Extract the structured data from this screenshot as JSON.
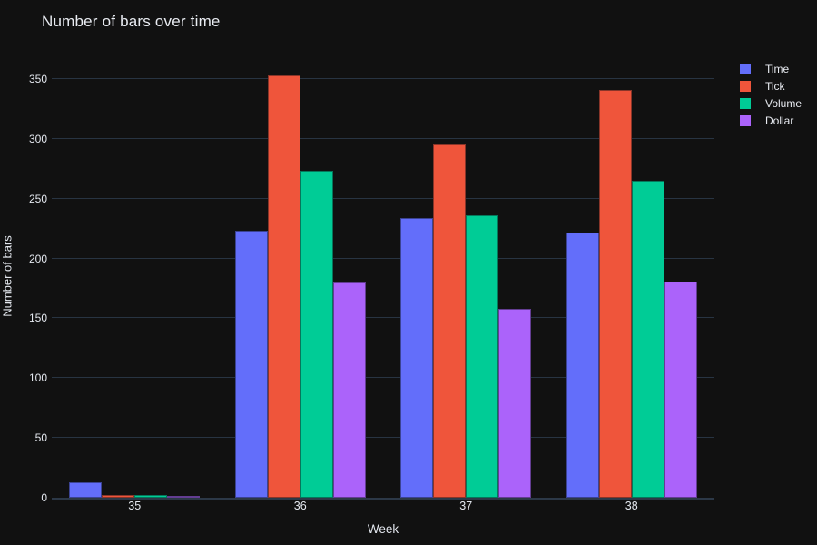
{
  "colors": {
    "background": "#111111",
    "grid": "#283442",
    "zero_line": "#2c3847",
    "text": "#e9ecf2"
  },
  "chart_data": {
    "type": "bar",
    "title": "Number of bars over time",
    "xlabel": "Week",
    "ylabel": "Number of bars",
    "categories": [
      "35",
      "36",
      "37",
      "38"
    ],
    "series": [
      {
        "name": "Time",
        "color": "#636EFA",
        "values": [
          13,
          223,
          234,
          222
        ]
      },
      {
        "name": "Tick",
        "color": "#EF553B",
        "values": [
          2,
          353,
          295,
          341
        ]
      },
      {
        "name": "Volume",
        "color": "#00CC96",
        "values": [
          2,
          273,
          236,
          265
        ]
      },
      {
        "name": "Dollar",
        "color": "#AB63FA",
        "values": [
          1,
          180,
          158,
          181
        ]
      }
    ],
    "yticks": [
      0,
      50,
      100,
      150,
      200,
      250,
      300,
      350
    ],
    "ylim": [
      0,
      370
    ],
    "grid": true,
    "legend_position": "right-top",
    "bar_mode": "group"
  }
}
